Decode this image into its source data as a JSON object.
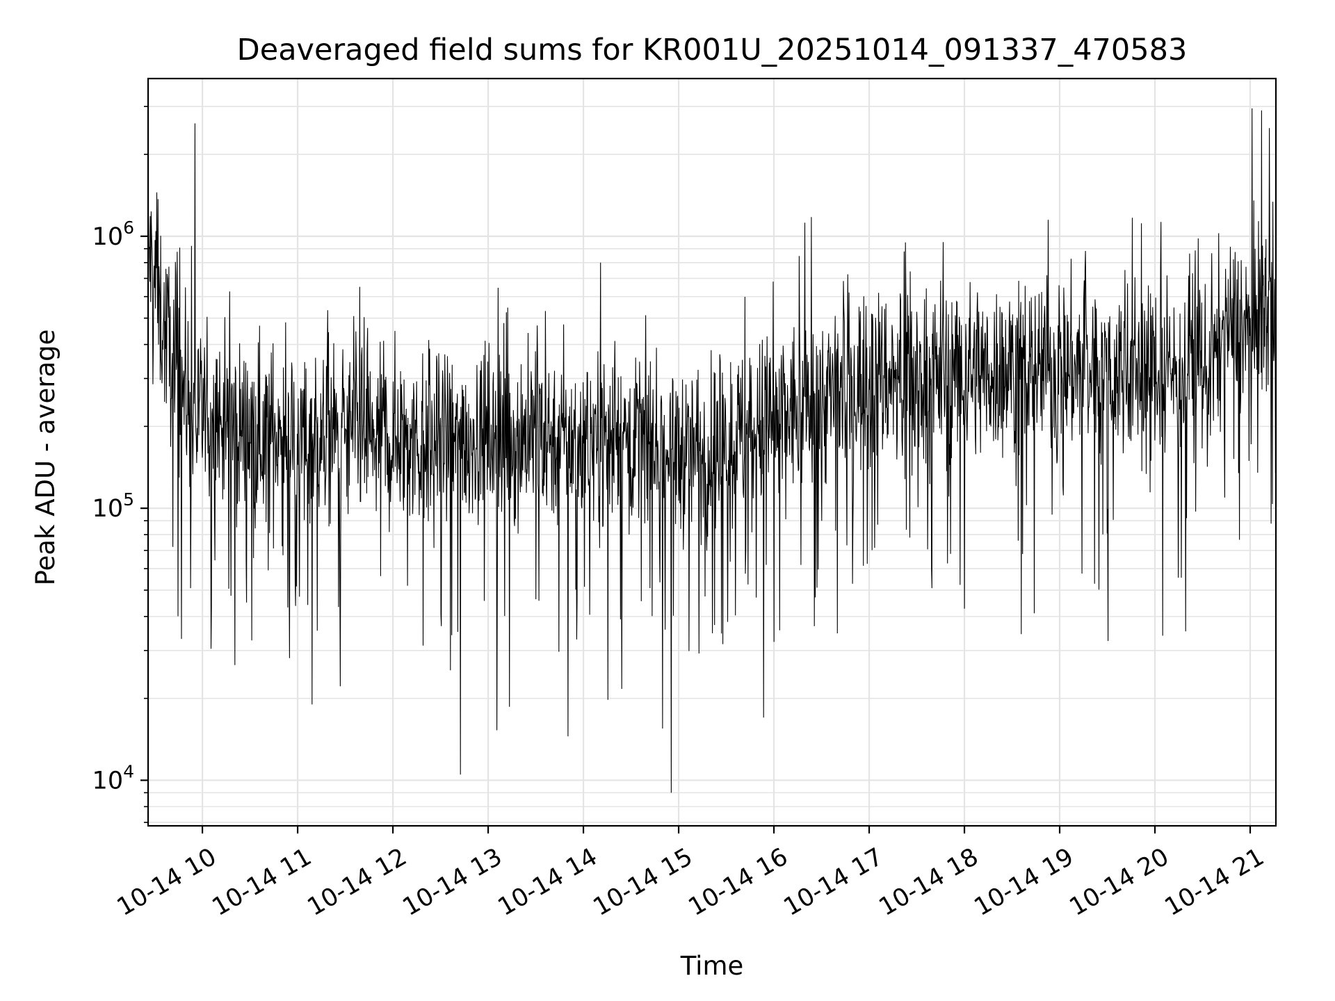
{
  "chart_data": {
    "type": "line",
    "title": "Deaveraged field sums for KR001U_20251014_091337_470583",
    "xlabel": "Time",
    "ylabel": "Peak ADU - average",
    "yscale": "log",
    "ylim": [
      6800,
      3800000
    ],
    "xlim_hours": [
      9.43,
      21.27
    ],
    "grid": true,
    "line_color": "#000000",
    "x_ticks": [
      {
        "hour": 10,
        "label": "10-14 10"
      },
      {
        "hour": 11,
        "label": "10-14 11"
      },
      {
        "hour": 12,
        "label": "10-14 12"
      },
      {
        "hour": 13,
        "label": "10-14 13"
      },
      {
        "hour": 14,
        "label": "10-14 14"
      },
      {
        "hour": 15,
        "label": "10-14 15"
      },
      {
        "hour": 16,
        "label": "10-14 16"
      },
      {
        "hour": 17,
        "label": "10-14 17"
      },
      {
        "hour": 18,
        "label": "10-14 18"
      },
      {
        "hour": 19,
        "label": "10-14 19"
      },
      {
        "hour": 20,
        "label": "10-14 20"
      },
      {
        "hour": 21,
        "label": "10-14 21"
      }
    ],
    "y_ticks": [
      {
        "value": 10000,
        "base": "10",
        "exp": "4"
      },
      {
        "value": 100000,
        "base": "10",
        "exp": "5"
      },
      {
        "value": 1000000,
        "base": "10",
        "exp": "6"
      }
    ],
    "series": [
      {
        "name": "deaveraged field sum",
        "trend_hours": [
          9.43,
          9.6,
          9.9,
          10.5,
          11.5,
          12.5,
          13.5,
          14.5,
          15.0,
          15.5,
          16.0,
          16.5,
          17.0,
          17.5,
          18.0,
          19.0,
          20.0,
          20.6,
          20.75,
          21.0,
          21.27
        ],
        "trend_values": [
          900000,
          450000,
          220000,
          190000,
          180000,
          175000,
          185000,
          180000,
          160000,
          170000,
          210000,
          250000,
          300000,
          310000,
          320000,
          330000,
          320000,
          320000,
          480000,
          450000,
          600000
        ],
        "notable_points": [
          {
            "hour": 9.92,
            "value": 2600000
          },
          {
            "hour": 9.52,
            "value": 1450000
          },
          {
            "hour": 11.15,
            "value": 19000
          },
          {
            "hour": 12.71,
            "value": 10500
          },
          {
            "hour": 13.84,
            "value": 14500
          },
          {
            "hour": 14.18,
            "value": 800000
          },
          {
            "hour": 14.83,
            "value": 15500
          },
          {
            "hour": 14.92,
            "value": 9000
          },
          {
            "hour": 15.89,
            "value": 17000
          },
          {
            "hour": 18.88,
            "value": 1150000
          },
          {
            "hour": 20.08,
            "value": 34000
          },
          {
            "hour": 21.12,
            "value": 2900000
          },
          {
            "hour": 21.2,
            "value": 2500000
          }
        ]
      }
    ]
  }
}
